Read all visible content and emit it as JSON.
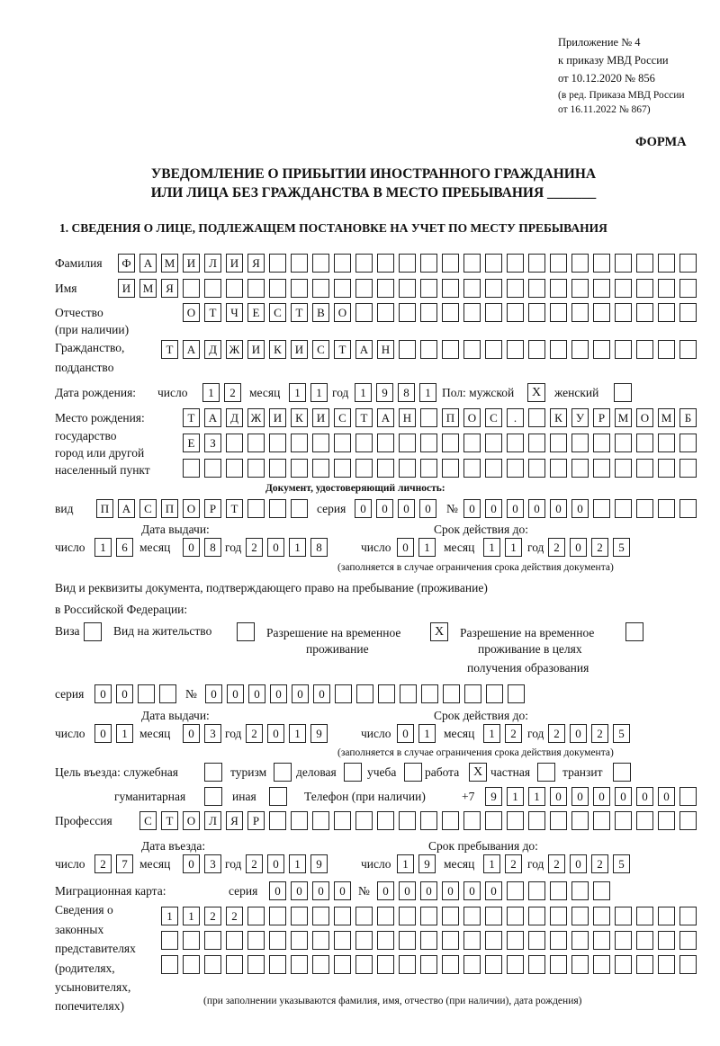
{
  "header": {
    "line1": "Приложение № 4",
    "line2": "к приказу МВД России",
    "line3": "от 10.12.2020 № 856",
    "line4": "(в ред. Приказа МВД России",
    "line5": "от 16.11.2022 № 867)",
    "form_label": "ФОРМА",
    "title1": "УВЕДОМЛЕНИЕ О ПРИБЫТИИ ИНОСТРАННОГО ГРАЖДАНИНА",
    "title2": "ИЛИ ЛИЦА БЕЗ ГРАЖДАНСТВА В МЕСТО ПРЕБЫВАНИЯ _______",
    "section1": "1. СВЕДЕНИЯ О ЛИЦЕ, ПОДЛЕЖАЩЕМ ПОСТАНОВКЕ НА УЧЕТ ПО МЕСТУ ПРЕБЫВАНИЯ"
  },
  "labels": {
    "surname": "Фамилия",
    "name": "Имя",
    "patronymic": "Отчество",
    "patronymic2": "(при наличии)",
    "citizenship": "Гражданство,",
    "citizenship2": "подданство",
    "birth_date": "Дата рождения:",
    "day": "число",
    "month": "месяц",
    "year": "год",
    "sex": "Пол: мужской",
    "female": "женский",
    "birth_place": "Место рождения:",
    "bp2": "государство",
    "bp3": "город или другой",
    "bp4": "населенный пункт",
    "id_doc": "Документ, удостоверяющий личность:",
    "kind": "вид",
    "series": "серия",
    "number": "№",
    "issue_date": "Дата выдачи:",
    "valid_until": "Срок действия до:",
    "valid_note": "(заполняется в случае ограничения срока действия документа)",
    "right_doc1": "Вид и реквизиты документа, подтверждающего право на пребывание (проживание)",
    "right_doc2": "в Российской Федерации:",
    "visa": "Виза",
    "residence": "Вид на жительство",
    "trp1": "Разрешение на временное",
    "trp2": "проживание",
    "trpe1": "Разрешение на временное",
    "trpe2": "проживание в целях",
    "trpe3": "получения образования",
    "purpose": "Цель въезда: служебная",
    "tourism": "туризм",
    "business": "деловая",
    "study": "учеба",
    "work": "работа",
    "private": "частная",
    "transit": "транзит",
    "humanitarian": "гуманитарная",
    "other": "иная",
    "phone": "Телефон (при наличии)",
    "phone_prefix": "+7",
    "profession": "Профессия",
    "entry_date": "Дата въезда:",
    "stay_until": "Срок пребывания до:",
    "migration_card": "Миграционная карта:",
    "reps1": "Сведения о",
    "reps2": "законных",
    "reps3": "представителях",
    "reps4": "(родителях,",
    "reps5": "усыновителях,",
    "reps6": "попечителях)",
    "reps_note": "(при заполнении указываются фамилия, имя, отчество (при наличии), дата рождения)"
  },
  "values": {
    "surname": "ФАМИЛИЯ",
    "name": "ИМЯ",
    "patronymic": "ОТЧЕСТВО",
    "citizenship": "ТАДЖИКИСТАН",
    "birth_day": "12",
    "birth_month": "11",
    "birth_year": "1981",
    "sex_male": "X",
    "sex_female": "",
    "birth_place_1": "ТАДЖИКИСТАН ПОС. КУРМОМБ",
    "birth_place_2": "ЕЗ",
    "birth_place_3": "",
    "doc_kind": "ПАСПОРТ",
    "doc_series": "0000",
    "doc_number": "000000",
    "doc_issue_day": "16",
    "doc_issue_month": "08",
    "doc_issue_year": "2018",
    "doc_valid_day": "01",
    "doc_valid_month": "11",
    "doc_valid_year": "2025",
    "right_visa": "",
    "right_residence": "",
    "right_trp": "X",
    "right_trpe": "",
    "right_series": "00",
    "right_number": "000000",
    "right_issue_day": "01",
    "right_issue_month": "03",
    "right_issue_year": "2019",
    "right_valid_day": "01",
    "right_valid_month": "12",
    "right_valid_year": "2025",
    "purpose_service": "",
    "purpose_tourism": "",
    "purpose_business": "",
    "purpose_study": "",
    "purpose_work": "X",
    "purpose_private": "",
    "purpose_transit": "",
    "purpose_humanitarian": "",
    "purpose_other": "",
    "phone": "911000000",
    "profession": "СТОЛЯР",
    "entry_day": "27",
    "entry_month": "03",
    "entry_year": "2019",
    "stay_day": "19",
    "stay_month": "12",
    "stay_year": "2025",
    "mc_series": "0000",
    "mc_number": "000000",
    "reps_1": "1122",
    "reps_2": "",
    "reps_3": ""
  }
}
